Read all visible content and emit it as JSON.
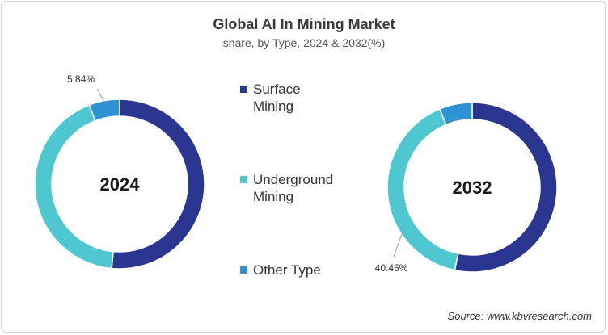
{
  "title": "Global AI In Mining Market",
  "subtitle": "share, by Type, 2024 & 2032(%)",
  "source": "Source: www.kbvresearch.com",
  "colors": {
    "surface": "#2b3690",
    "underground": "#4fc7d1",
    "other": "#2f92d3"
  },
  "legend": [
    {
      "label": "Surface Mining",
      "color": "#2b3690"
    },
    {
      "label": "Underground Mining",
      "color": "#4fc7d1"
    },
    {
      "label": "Other Type",
      "color": "#2f92d3"
    }
  ],
  "chart_data": [
    {
      "type": "pie",
      "center_label": "2024",
      "categories": [
        "Surface Mining",
        "Underground Mining",
        "Other Type"
      ],
      "values": [
        51.5,
        42.66,
        5.84
      ],
      "data_labels": [
        "",
        "",
        "5.84%"
      ]
    },
    {
      "type": "pie",
      "center_label": "2032",
      "categories": [
        "Surface Mining",
        "Underground Mining",
        "Other Type"
      ],
      "values": [
        53.3,
        40.45,
        6.25
      ],
      "data_labels": [
        "",
        "40.45%",
        ""
      ]
    }
  ]
}
